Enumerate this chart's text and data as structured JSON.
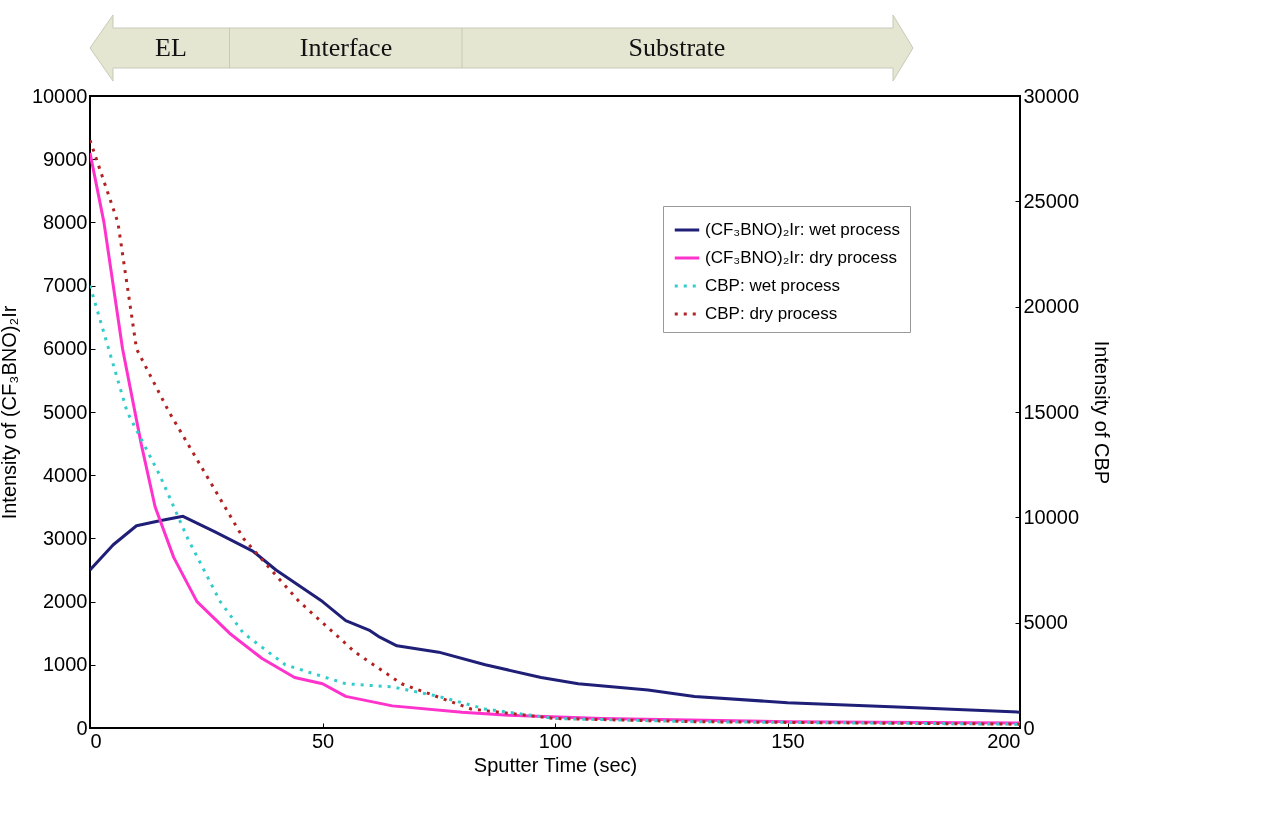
{
  "chart_data": {
    "type": "line",
    "xlabel": "Sputter Time (sec)",
    "ylabel": "Intensity of (CF₃BNO)₂Ir",
    "y2label": "Intensity of CBP",
    "xlim": [
      0,
      200
    ],
    "xticks": [
      0,
      50,
      100,
      150,
      200
    ],
    "ylim": [
      0,
      10000
    ],
    "yticks": [
      0,
      1000,
      2000,
      3000,
      4000,
      5000,
      6000,
      7000,
      8000,
      9000,
      10000
    ],
    "y2lim": [
      0,
      30000
    ],
    "y2ticks": [
      0,
      5000,
      10000,
      15000,
      20000,
      25000,
      30000
    ],
    "grid": false,
    "legend": "top right",
    "annotations": [
      "EL",
      "Interface",
      "Substrate"
    ],
    "series": [
      {
        "name": "(CF₃BNO)₂Ir: wet process",
        "color": "#1f1f78",
        "line_style": "solid",
        "x": [
          0,
          5,
          10,
          15,
          20,
          27,
          35,
          40,
          45,
          50,
          55,
          60,
          62,
          66,
          75,
          85,
          97,
          105,
          120,
          130,
          150,
          175,
          200
        ],
        "values": [
          2500,
          2900,
          3200,
          3280,
          3350,
          3100,
          2800,
          2500,
          2250,
          2000,
          1700,
          1550,
          1450,
          1300,
          1200,
          1000,
          800,
          700,
          600,
          500,
          400,
          330,
          250
        ]
      },
      {
        "name": "(CF₃BNO)₂Ir: dry process",
        "color": "#ff33cc",
        "line_style": "solid",
        "x": [
          0,
          3,
          7,
          11,
          14,
          18,
          23,
          30,
          37,
          44,
          50,
          55,
          65,
          80,
          90,
          110,
          150,
          200
        ],
        "values": [
          9100,
          8000,
          6000,
          4500,
          3500,
          2700,
          2000,
          1500,
          1100,
          800,
          700,
          500,
          350,
          250,
          200,
          150,
          100,
          80
        ]
      },
      {
        "name": "CBP: wet process",
        "color": "#33cccc",
        "line_style": "dotted",
        "axis": "y2",
        "x": [
          0,
          4,
          8,
          15,
          21,
          28,
          33,
          42,
          55,
          65,
          75,
          85,
          100,
          130,
          200
        ],
        "values": [
          21000,
          18000,
          15000,
          12000,
          9000,
          6000,
          4500,
          3000,
          2100,
          1950,
          1500,
          900,
          450,
          300,
          180
        ]
      },
      {
        "name": "CBP: dry process",
        "color": "#b22222",
        "line_style": "dotted",
        "axis": "y2",
        "x": [
          0,
          6,
          10,
          17,
          25,
          33,
          45,
          57,
          67,
          82,
          100,
          130,
          200
        ],
        "values": [
          27900,
          24000,
          18000,
          15000,
          12000,
          9000,
          6000,
          3600,
          2100,
          900,
          450,
          300,
          180
        ]
      }
    ]
  }
}
